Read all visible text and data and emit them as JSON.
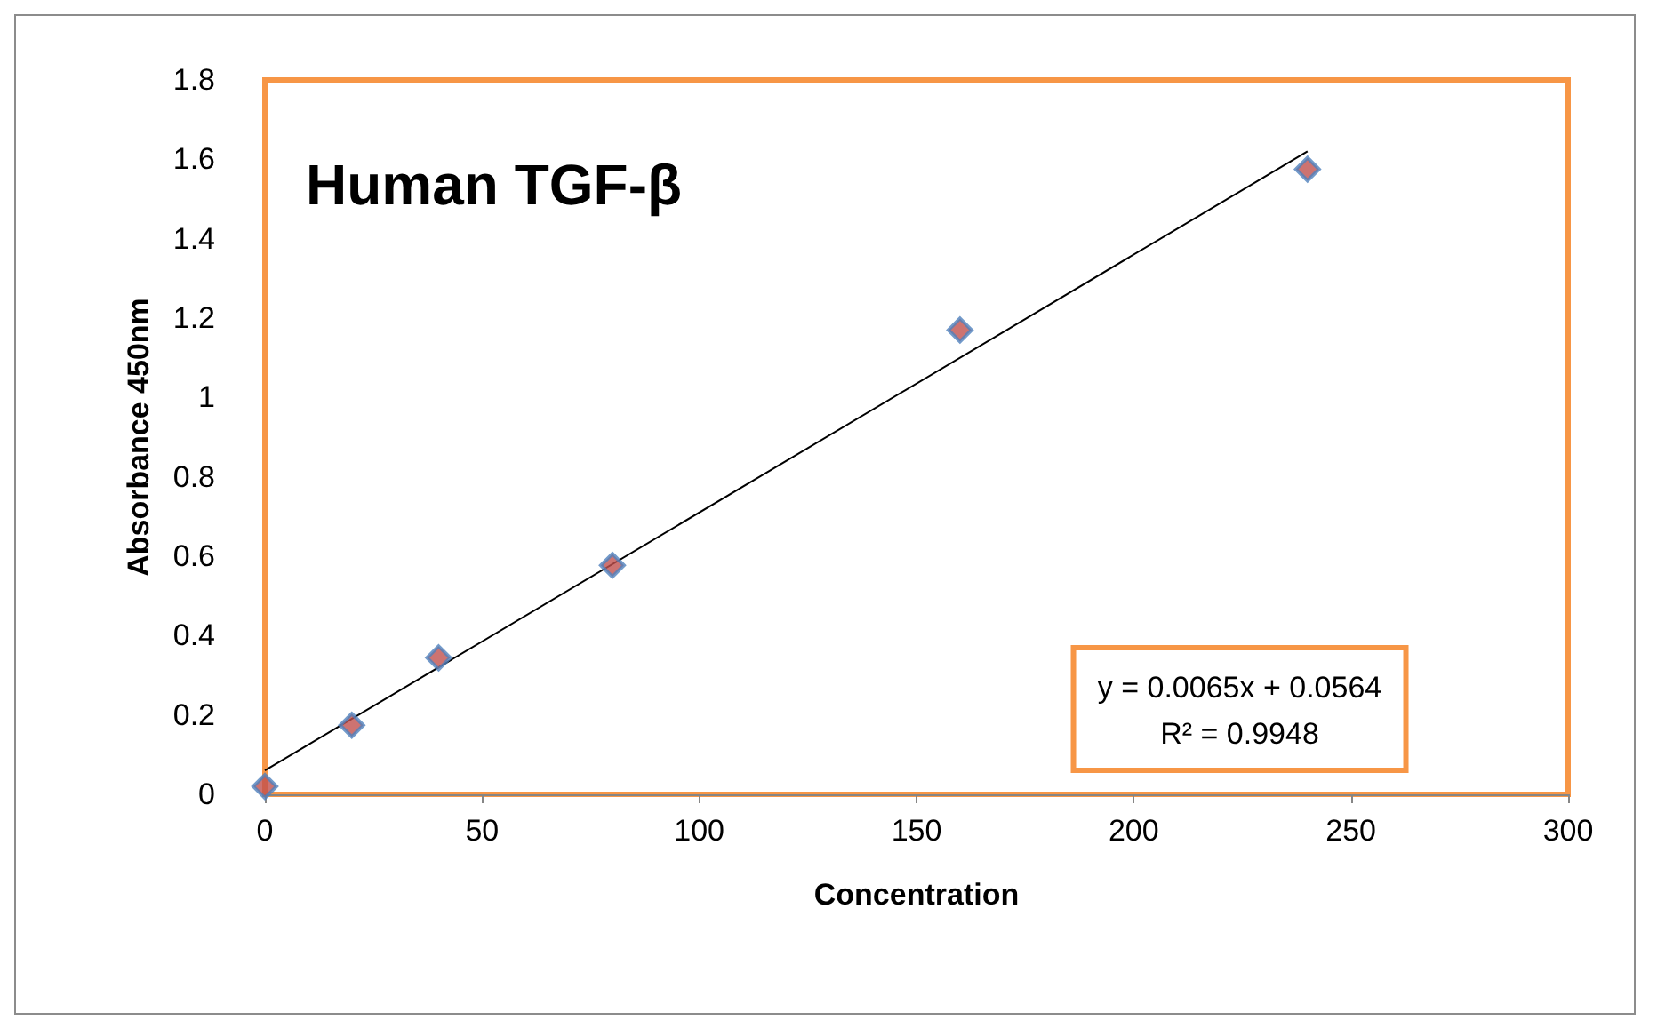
{
  "chart_data": {
    "type": "scatter",
    "title": "Human TGF-β",
    "xlabel": "Concentration",
    "ylabel": "Absorbance 450nm",
    "series": [
      {
        "color": "#c0504d",
        "x": [
          0,
          20,
          40,
          80,
          160,
          240
        ],
        "values": [
          0.02,
          0.174,
          0.344,
          0.577,
          1.17,
          1.575
        ],
        "marker": "diamond"
      },
      {
        "type": "line",
        "color": "#000000",
        "x": [
          0,
          240
        ],
        "values": [
          0.06,
          1.62
        ],
        "marker": "none"
      }
    ],
    "xlim": [
      0,
      300
    ],
    "xticks": [
      0,
      50,
      100,
      150,
      200,
      250,
      300
    ],
    "ylim": [
      0,
      1.8
    ],
    "yticks": [
      0,
      0.2,
      0.4,
      0.6,
      0.8,
      1,
      1.2,
      1.4,
      1.6,
      1.8
    ],
    "annotations": [
      "y = 0.0065x + 0.0564",
      "R² = 0.9948"
    ],
    "grid": false
  }
}
